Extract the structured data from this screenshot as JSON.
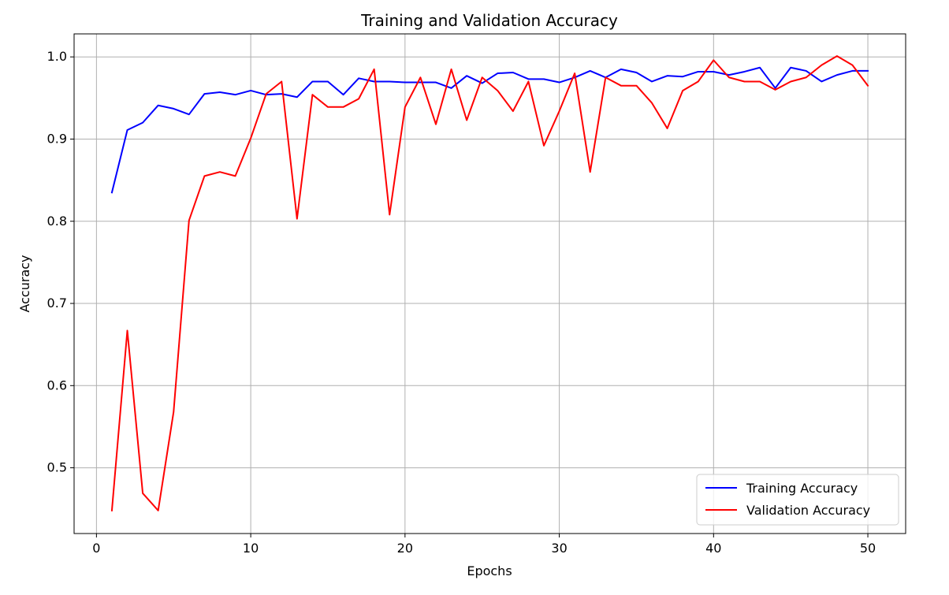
{
  "chart_data": {
    "type": "line",
    "title": "Training and Validation Accuracy",
    "xlabel": "Epochs",
    "ylabel": "Accuracy",
    "xlim": [
      -1.45,
      52.45
    ],
    "ylim": [
      0.42,
      1.028
    ],
    "xticks": [
      0,
      10,
      20,
      30,
      40,
      50
    ],
    "yticks": [
      0.5,
      0.6,
      0.7,
      0.8,
      0.9,
      1.0
    ],
    "xtick_labels": [
      "0",
      "10",
      "20",
      "30",
      "40",
      "50"
    ],
    "ytick_labels": [
      "0.5",
      "0.6",
      "0.7",
      "0.8",
      "0.9",
      "1.0"
    ],
    "grid": true,
    "legend_position": "bottom-right",
    "x": [
      1,
      2,
      3,
      4,
      5,
      6,
      7,
      8,
      9,
      10,
      11,
      12,
      13,
      14,
      15,
      16,
      17,
      18,
      19,
      20,
      21,
      22,
      23,
      24,
      25,
      26,
      27,
      28,
      29,
      30,
      31,
      32,
      33,
      34,
      35,
      36,
      37,
      38,
      39,
      40,
      41,
      42,
      43,
      44,
      45,
      46,
      47,
      48,
      49,
      50
    ],
    "series": [
      {
        "name": "Training Accuracy",
        "color": "#0000ff",
        "values": [
          0.835,
          0.911,
          0.92,
          0.941,
          0.937,
          0.93,
          0.955,
          0.957,
          0.954,
          0.959,
          0.954,
          0.955,
          0.951,
          0.97,
          0.97,
          0.954,
          0.974,
          0.97,
          0.97,
          0.969,
          0.969,
          0.969,
          0.962,
          0.977,
          0.968,
          0.98,
          0.981,
          0.973,
          0.973,
          0.969,
          0.975,
          0.983,
          0.975,
          0.985,
          0.981,
          0.97,
          0.977,
          0.976,
          0.982,
          0.982,
          0.978,
          0.982,
          0.987,
          0.962,
          0.987,
          0.983,
          0.97,
          0.978,
          0.983,
          0.983
        ]
      },
      {
        "name": "Validation Accuracy",
        "color": "#ff0000",
        "values": [
          0.448,
          0.667,
          0.469,
          0.448,
          0.568,
          0.801,
          0.855,
          0.86,
          0.855,
          0.901,
          0.955,
          0.97,
          0.803,
          0.954,
          0.939,
          0.939,
          0.949,
          0.985,
          0.808,
          0.939,
          0.975,
          0.918,
          0.985,
          0.923,
          0.975,
          0.959,
          0.934,
          0.97,
          0.892,
          0.934,
          0.98,
          0.86,
          0.975,
          0.965,
          0.965,
          0.944,
          0.913,
          0.959,
          0.97,
          0.996,
          0.975,
          0.97,
          0.97,
          0.96,
          0.97,
          0.975,
          0.99,
          1.001,
          0.99,
          0.965
        ]
      }
    ]
  }
}
